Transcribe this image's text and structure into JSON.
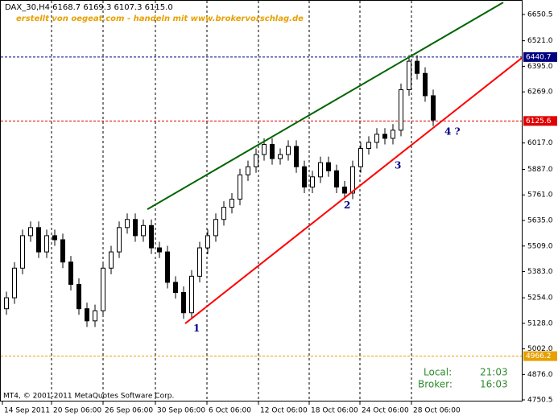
{
  "chart_data": {
    "type": "candlestick",
    "title": "DAX_30,H4  6168.7 6169.3 6107.3 6115.0",
    "subtitle": "erstellt von oegeat.com - handeln mit www.brokervorschlag.de",
    "footer": "MT4, © 2001-2011 MetaQuotes Software Corp.",
    "clock": {
      "local_label": "Local:",
      "local": "21:03",
      "broker_label": "Broker:",
      "broker": "16:03"
    },
    "open": [
      5200,
      5254,
      5400,
      5560,
      5600,
      5480,
      5560,
      5540,
      5430,
      5320,
      5200,
      5140,
      5190,
      5400,
      5480,
      5600,
      5640,
      5560,
      5610,
      5500,
      5480,
      5330,
      5280,
      5180,
      5360,
      5500,
      5560,
      5640,
      5700,
      5740,
      5860,
      5900,
      5960,
      6010,
      5940,
      5960,
      6000,
      5900,
      5800,
      5850,
      5920,
      5880,
      5800,
      5770,
      5900,
      5990,
      6020,
      6060,
      6040,
      6080,
      6280,
      6420,
      6360,
      6250
    ],
    "high": [
      5284,
      5430,
      5590,
      5630,
      5630,
      5590,
      5590,
      5570,
      5460,
      5350,
      5230,
      5220,
      5430,
      5510,
      5630,
      5670,
      5670,
      5640,
      5640,
      5530,
      5510,
      5360,
      5310,
      5390,
      5530,
      5590,
      5670,
      5730,
      5770,
      5890,
      5930,
      5990,
      6040,
      6040,
      5990,
      6030,
      6030,
      5930,
      5880,
      5950,
      5950,
      5910,
      5830,
      5930,
      6020,
      6050,
      6090,
      6090,
      6110,
      6310,
      6450,
      6450,
      6390,
      6280
    ],
    "low": [
      5170,
      5224,
      5370,
      5530,
      5450,
      5450,
      5510,
      5400,
      5290,
      5170,
      5110,
      5110,
      5160,
      5370,
      5450,
      5570,
      5530,
      5530,
      5470,
      5450,
      5300,
      5250,
      5150,
      5150,
      5330,
      5470,
      5530,
      5610,
      5670,
      5710,
      5830,
      5870,
      5930,
      5910,
      5910,
      5930,
      5870,
      5770,
      5770,
      5820,
      5850,
      5770,
      5740,
      5740,
      5870,
      5960,
      5990,
      6010,
      6010,
      6050,
      6250,
      6330,
      6220,
      6100
    ],
    "close": [
      5254,
      5400,
      5560,
      5600,
      5480,
      5560,
      5540,
      5430,
      5320,
      5200,
      5140,
      5190,
      5400,
      5480,
      5600,
      5640,
      5560,
      5610,
      5500,
      5480,
      5330,
      5280,
      5180,
      5360,
      5500,
      5560,
      5640,
      5700,
      5740,
      5860,
      5900,
      5960,
      6010,
      5940,
      5960,
      6000,
      5900,
      5800,
      5850,
      5920,
      5880,
      5800,
      5770,
      5900,
      5990,
      6020,
      6060,
      6040,
      6080,
      6280,
      6420,
      6360,
      6250,
      6130
    ],
    "up_color": "#ffffff",
    "down_color": "#000000",
    "xlim": [
      -0.8,
      64
    ],
    "xticks": [
      {
        "value": -0.5,
        "label": "14 Sep 2011"
      },
      {
        "value": 5.6,
        "label": "20 Sep 06:00"
      },
      {
        "value": 12,
        "label": "26 Sep 06:00"
      },
      {
        "value": 18.5,
        "label": "30 Sep 06:00"
      },
      {
        "value": 24.9,
        "label": "6 Oct 06:00"
      },
      {
        "value": 31.3,
        "label": "12 Oct 06:00"
      },
      {
        "value": 37.6,
        "label": "18 Oct 06:00"
      },
      {
        "value": 43.9,
        "label": "24 Oct 06:00"
      },
      {
        "value": 50.3,
        "label": "28 Oct 06:00"
      }
    ],
    "ylim": [
      4750.5,
      6650.5
    ],
    "yticks": [
      {
        "value": 6650.5,
        "label": "6650.5"
      },
      {
        "value": 6521,
        "label": "6521.0"
      },
      {
        "value": 6395,
        "label": "6395.0"
      },
      {
        "value": 6269,
        "label": "6269.0"
      },
      {
        "value": 6017,
        "label": "6017.0"
      },
      {
        "value": 5887,
        "label": "5887.0"
      },
      {
        "value": 5761,
        "label": "5761.0"
      },
      {
        "value": 5635,
        "label": "5635.0"
      },
      {
        "value": 5509,
        "label": "5509.0"
      },
      {
        "value": 5383,
        "label": "5383.0"
      },
      {
        "value": 5254,
        "label": "5254.0"
      },
      {
        "value": 5128,
        "label": "5128.0"
      },
      {
        "value": 5002,
        "label": "5002.0"
      },
      {
        "value": 4876,
        "label": "4876.0"
      },
      {
        "value": 4750.5,
        "label": "4750.5"
      }
    ],
    "levels": [
      {
        "value": 6440.7,
        "color": "#000080"
      },
      {
        "value": 6125.6,
        "color": "#e00000"
      },
      {
        "value": 4966.2,
        "color": "#e8a000"
      }
    ],
    "trendlines": [
      {
        "color": "#006400",
        "x": [
          17.5,
          61.7
        ],
        "y": [
          5690,
          6710
        ]
      },
      {
        "color": "#ff0000",
        "x": [
          22.2,
          64
        ],
        "y": [
          5127,
          6436
        ]
      }
    ],
    "annotations": [
      {
        "text": "1",
        "x": 23.2,
        "y": 5102
      },
      {
        "text": "2",
        "x": 41.9,
        "y": 5709
      },
      {
        "text": "3",
        "x": 48.2,
        "y": 5904
      },
      {
        "text": "4 ?",
        "x": 54.4,
        "y": 6072
      }
    ]
  }
}
